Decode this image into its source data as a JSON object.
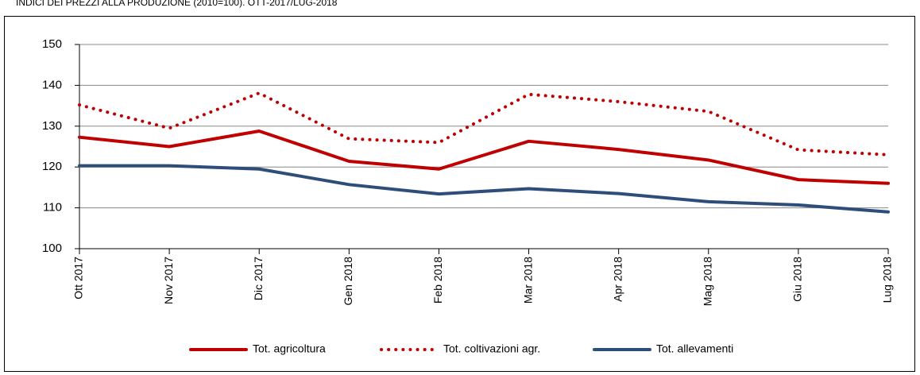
{
  "chart_data": {
    "type": "line",
    "title": "INDICI DEI PREZZI ALLA PRODUZIONE (2010=100). OTT-2017/LUG-2018",
    "categories": [
      "Ott 2017",
      "Nov 2017",
      "Dic 2017",
      "Gen 2018",
      "Feb 2018",
      "Mar 2018",
      "Apr 2018",
      "Mag 2018",
      "Giu 2018",
      "Lug 2018"
    ],
    "series": [
      {
        "name": "Tot. agricoltura",
        "color": "#c00000",
        "style": "solid",
        "values": [
          127.3,
          125,
          128.8,
          121.4,
          119.5,
          126.3,
          124.3,
          121.7,
          116.9,
          116
        ]
      },
      {
        "name": "Tot. coltivazioni agr.",
        "color": "#c00000",
        "style": "dotted",
        "values": [
          135.2,
          129.5,
          138.1,
          126.9,
          126,
          137.8,
          136,
          133.6,
          124.2,
          123
        ]
      },
      {
        "name": "Tot. allevamenti",
        "color": "#2e4d7b",
        "style": "solid",
        "values": [
          120.3,
          120.3,
          119.5,
          115.7,
          113.4,
          114.7,
          113.5,
          111.5,
          110.7,
          109
        ]
      }
    ],
    "ylim": [
      100,
      150
    ],
    "yticks": [
      100,
      110,
      120,
      130,
      140,
      150
    ],
    "grid": true
  }
}
